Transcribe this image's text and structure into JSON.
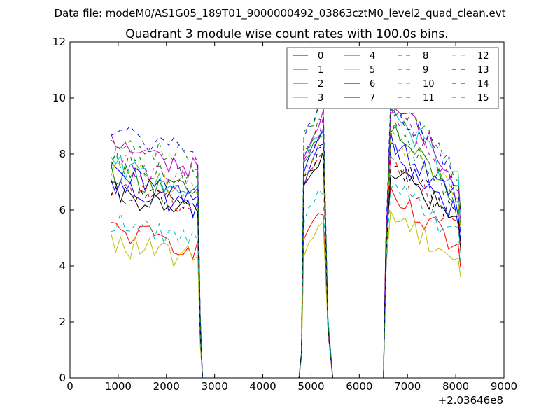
{
  "suptitle": "Data file: modeM0/AS1G05_189T01_9000000492_03863cztM0_level2_quad_clean.evt",
  "chart_data": {
    "type": "line",
    "title": "Quadrant 3 module wise count rates with 100.0s bins.",
    "xlabel": "",
    "ylabel": "",
    "x_offset_label": "+2.03646e8",
    "xlim": [
      0,
      9000
    ],
    "ylim": [
      0,
      12
    ],
    "xticks": [
      0,
      1000,
      2000,
      3000,
      4000,
      5000,
      6000,
      7000,
      8000,
      9000
    ],
    "yticks": [
      0,
      2,
      4,
      6,
      8,
      10,
      12
    ],
    "grid": false,
    "legend_position": "top-right",
    "segments": [
      {
        "x_start": 850,
        "x_end": 2650,
        "shape": "plateau-then-decline"
      },
      {
        "x_start": 4850,
        "x_end": 5250,
        "shape": "rising"
      },
      {
        "x_start": 6650,
        "x_end": 8050,
        "shape": "peak-then-decline"
      }
    ],
    "series": [
      {
        "name": "0",
        "color": "#0000ff",
        "dash": "solid",
        "levels": [
          6.9,
          7.1,
          8.1
        ]
      },
      {
        "name": "1",
        "color": "#008000",
        "dash": "solid",
        "levels": [
          7.4,
          7.6,
          8.9
        ]
      },
      {
        "name": "2",
        "color": "#ff0000",
        "dash": "solid",
        "levels": [
          5.3,
          5.1,
          6.4
        ]
      },
      {
        "name": "3",
        "color": "#00bfbf",
        "dash": "solid",
        "levels": [
          7.6,
          7.8,
          9.6
        ]
      },
      {
        "name": "4",
        "color": "#bf00bf",
        "dash": "solid",
        "levels": [
          8.4,
          7.9,
          9.9
        ]
      },
      {
        "name": "5",
        "color": "#bfbf00",
        "dash": "solid",
        "levels": [
          4.8,
          4.6,
          5.9
        ]
      },
      {
        "name": "6",
        "color": "#000000",
        "dash": "solid",
        "levels": [
          6.6,
          6.8,
          7.6
        ]
      },
      {
        "name": "7",
        "color": "#0000ff",
        "dash": "solid",
        "levels": [
          7.3,
          7.5,
          8.6
        ]
      },
      {
        "name": "8",
        "color": "#008000",
        "dash": "dashed",
        "levels": [
          8.0,
          7.9,
          8.9
        ]
      },
      {
        "name": "9",
        "color": "#ff0000",
        "dash": "dashed",
        "levels": [
          6.9,
          7.0,
          7.6
        ]
      },
      {
        "name": "10",
        "color": "#00bfbf",
        "dash": "dashed",
        "levels": [
          5.6,
          5.8,
          6.9
        ]
      },
      {
        "name": "11",
        "color": "#bf00bf",
        "dash": "dashed",
        "levels": [
          7.8,
          7.7,
          9.4
        ]
      },
      {
        "name": "12",
        "color": "#bfbf00",
        "dash": "dashed",
        "levels": [
          7.5,
          7.3,
          8.9
        ]
      },
      {
        "name": "13",
        "color": "#000000",
        "dash": "dashed",
        "levels": [
          6.8,
          7.0,
          7.9
        ]
      },
      {
        "name": "14",
        "color": "#0000ff",
        "dash": "dashed",
        "levels": [
          8.9,
          8.6,
          9.9
        ]
      },
      {
        "name": "15",
        "color": "#008000",
        "dash": "dashed",
        "levels": [
          8.7,
          8.5,
          10.0
        ]
      }
    ]
  }
}
